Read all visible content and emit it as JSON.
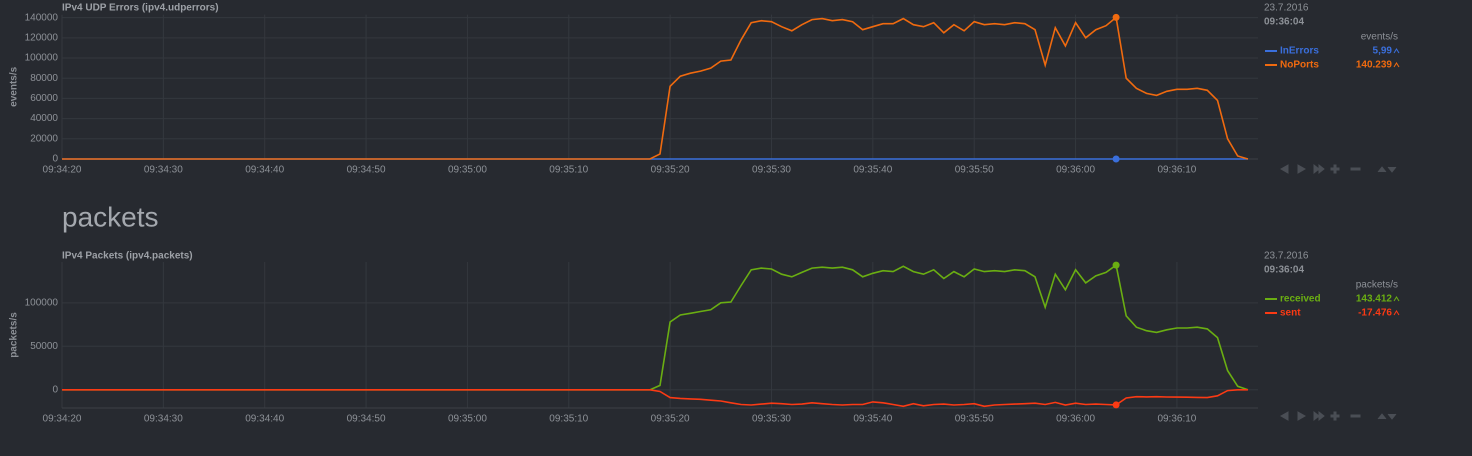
{
  "section_heading": "packets",
  "chart_data": [
    {
      "type": "line",
      "title": "IPv4 UDP Errors (ipv4.udperrors)",
      "ylabel": "events/s",
      "units": "events/s",
      "date": "23.7.2016",
      "time": "09:36:04",
      "x": [
        "09:34:20",
        "09:35:18",
        "09:35:19",
        "09:35:20",
        "09:35:21",
        "09:35:22",
        "09:35:23",
        "09:35:24",
        "09:35:25",
        "09:35:26",
        "09:35:27",
        "09:35:28",
        "09:35:29",
        "09:35:30",
        "09:35:31",
        "09:35:32",
        "09:35:33",
        "09:35:34",
        "09:35:35",
        "09:35:36",
        "09:35:37",
        "09:35:38",
        "09:35:39",
        "09:35:40",
        "09:35:41",
        "09:35:42",
        "09:35:43",
        "09:35:44",
        "09:35:45",
        "09:35:46",
        "09:35:47",
        "09:35:48",
        "09:35:49",
        "09:35:50",
        "09:35:51",
        "09:35:52",
        "09:35:53",
        "09:35:54",
        "09:35:55",
        "09:35:56",
        "09:35:57",
        "09:35:58",
        "09:35:59",
        "09:36:00",
        "09:36:01",
        "09:36:02",
        "09:36:03",
        "09:36:04",
        "09:36:05",
        "09:36:06",
        "09:36:07",
        "09:36:08",
        "09:36:09",
        "09:36:10",
        "09:36:11",
        "09:36:12",
        "09:36:13",
        "09:36:14",
        "09:36:15",
        "09:36:16",
        "09:36:17"
      ],
      "xlim": [
        "09:34:20",
        "09:36:18"
      ],
      "xticks": [
        "09:34:20",
        "09:34:30",
        "09:34:40",
        "09:34:50",
        "09:35:00",
        "09:35:10",
        "09:35:20",
        "09:35:30",
        "09:35:40",
        "09:35:50",
        "09:36:00",
        "09:36:10"
      ],
      "ylim": [
        0,
        143000
      ],
      "yticks": [
        0,
        20000,
        40000,
        60000,
        80000,
        100000,
        120000,
        140000
      ],
      "grid": true,
      "series": [
        {
          "name": "InErrors",
          "color": "#3a6fdc",
          "current_label": "5,99",
          "values": [
            0,
            0,
            0,
            0,
            0,
            0,
            0,
            0,
            0,
            0,
            0,
            0,
            0,
            0,
            0,
            0,
            0,
            0,
            0,
            0,
            0,
            0,
            0,
            0,
            0,
            0,
            0,
            0,
            0,
            0,
            0,
            0,
            0,
            0,
            0,
            0,
            0,
            0,
            0,
            0,
            0,
            0,
            0,
            0,
            0,
            0,
            0,
            5.99,
            0,
            0,
            0,
            0,
            0,
            0,
            0,
            0,
            0,
            0,
            0,
            0,
            0
          ]
        },
        {
          "name": "NoPorts",
          "color": "#f06a0f",
          "current_label": "140.239",
          "values": [
            0,
            0,
            5000,
            72000,
            82000,
            85000,
            87000,
            90000,
            97000,
            98000,
            118000,
            135000,
            137000,
            136000,
            131000,
            127000,
            133000,
            138000,
            139000,
            137000,
            138000,
            136000,
            128000,
            131000,
            134000,
            134000,
            139000,
            133000,
            131000,
            135000,
            125000,
            133000,
            127000,
            136000,
            133000,
            134000,
            133000,
            135000,
            134000,
            128000,
            93000,
            130000,
            112000,
            135000,
            120000,
            128000,
            132000,
            140239,
            80000,
            70000,
            65000,
            63000,
            67000,
            69000,
            69000,
            70000,
            68000,
            58000,
            20000,
            3000,
            0
          ]
        }
      ]
    },
    {
      "type": "line",
      "title": "IPv4 Packets (ipv4.packets)",
      "ylabel": "packets/s",
      "units": "packets/s",
      "date": "23.7.2016",
      "time": "09:36:04",
      "x": [
        "09:34:20",
        "09:35:18",
        "09:35:19",
        "09:35:20",
        "09:35:21",
        "09:35:22",
        "09:35:23",
        "09:35:24",
        "09:35:25",
        "09:35:26",
        "09:35:27",
        "09:35:28",
        "09:35:29",
        "09:35:30",
        "09:35:31",
        "09:35:32",
        "09:35:33",
        "09:35:34",
        "09:35:35",
        "09:35:36",
        "09:35:37",
        "09:35:38",
        "09:35:39",
        "09:35:40",
        "09:35:41",
        "09:35:42",
        "09:35:43",
        "09:35:44",
        "09:35:45",
        "09:35:46",
        "09:35:47",
        "09:35:48",
        "09:35:49",
        "09:35:50",
        "09:35:51",
        "09:35:52",
        "09:35:53",
        "09:35:54",
        "09:35:55",
        "09:35:56",
        "09:35:57",
        "09:35:58",
        "09:35:59",
        "09:36:00",
        "09:36:01",
        "09:36:02",
        "09:36:03",
        "09:36:04",
        "09:36:05",
        "09:36:06",
        "09:36:07",
        "09:36:08",
        "09:36:09",
        "09:36:10",
        "09:36:11",
        "09:36:12",
        "09:36:13",
        "09:36:14",
        "09:36:15",
        "09:36:16",
        "09:36:17"
      ],
      "xlim": [
        "09:34:20",
        "09:36:18"
      ],
      "xticks": [
        "09:34:20",
        "09:34:30",
        "09:34:40",
        "09:34:50",
        "09:35:00",
        "09:35:10",
        "09:35:20",
        "09:35:30",
        "09:35:40",
        "09:35:50",
        "09:36:00",
        "09:36:10"
      ],
      "ylim": [
        -21000,
        147000
      ],
      "yticks": [
        0,
        50000,
        100000
      ],
      "grid": true,
      "series": [
        {
          "name": "received",
          "color": "#6aae12",
          "current_label": "143.412",
          "values": [
            0,
            0,
            5000,
            78000,
            86000,
            88000,
            90000,
            92000,
            100000,
            101000,
            120000,
            138000,
            140000,
            139000,
            133000,
            130000,
            135000,
            140000,
            141000,
            140000,
            141000,
            138000,
            130000,
            134000,
            137000,
            136000,
            142000,
            136000,
            133000,
            138000,
            128000,
            136000,
            130000,
            139000,
            136000,
            137000,
            136000,
            138000,
            137000,
            130000,
            95000,
            133000,
            115000,
            138000,
            123000,
            131000,
            135000,
            143412,
            85000,
            72000,
            68000,
            66000,
            69000,
            71000,
            71000,
            72000,
            70000,
            60000,
            22000,
            4000,
            0
          ]
        },
        {
          "name": "sent",
          "color": "#fb3a14",
          "current_label": "-17.476",
          "values": [
            0,
            0,
            -2000,
            -9000,
            -10000,
            -10500,
            -11000,
            -12000,
            -13000,
            -15000,
            -17000,
            -17500,
            -16500,
            -15500,
            -16000,
            -17000,
            -16500,
            -15000,
            -16000,
            -17000,
            -17500,
            -17000,
            -17000,
            -14000,
            -15000,
            -17000,
            -19000,
            -16000,
            -18500,
            -17000,
            -16500,
            -17500,
            -17000,
            -16000,
            -19000,
            -17500,
            -17000,
            -16500,
            -16000,
            -15500,
            -17000,
            -14500,
            -17500,
            -15500,
            -17000,
            -16500,
            -17000,
            -17476,
            -9500,
            -8000,
            -8200,
            -8000,
            -8300,
            -8500,
            -8600,
            -8800,
            -9000,
            -7000,
            -1000,
            0,
            0
          ]
        }
      ]
    }
  ]
}
